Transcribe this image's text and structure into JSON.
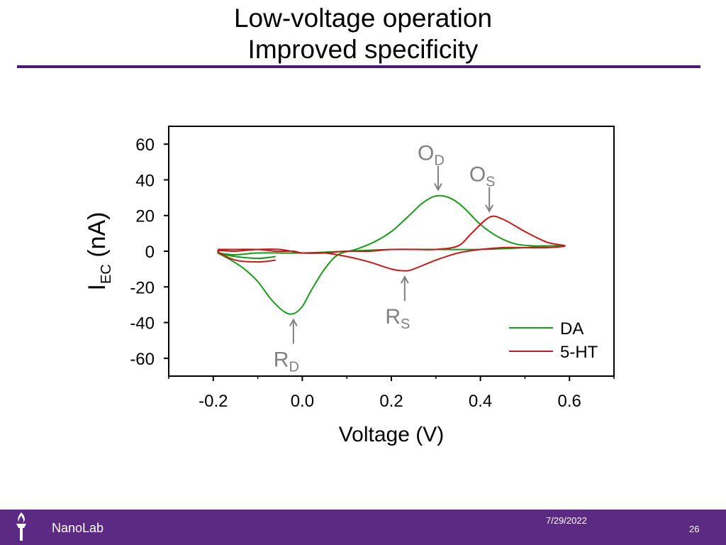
{
  "slide": {
    "title_line1": "Low-voltage operation",
    "title_line2": "Improved specificity",
    "footer_brand": "NanoLab",
    "footer_date": "7/29/2022",
    "page_number": "26",
    "colors": {
      "rule": "#4a1a6e",
      "footer": "#5c2a83"
    },
    "logo_icon": "torch-icon"
  },
  "chart_data": {
    "type": "line",
    "xlabel": "Voltage (V)",
    "ylabel": "I",
    "ylabel_sub": "EC",
    "ylabel_unit": " (nA)",
    "xlim": [
      -0.3,
      0.7
    ],
    "ylim": [
      -70,
      70
    ],
    "xticks": [
      -0.2,
      0.0,
      0.2,
      0.4,
      0.6
    ],
    "xtick_labels": [
      "-0.2",
      "0.0",
      "0.2",
      "0.4",
      "0.6"
    ],
    "yticks": [
      60,
      40,
      20,
      0,
      -20,
      -40,
      -60
    ],
    "ytick_labels": [
      "60",
      "40",
      "20",
      "0",
      "-20",
      "-40",
      "-60"
    ],
    "grid": false,
    "legend_position": "bottom-right",
    "series": [
      {
        "name": "DA",
        "color": "#1a9a1a",
        "x": [
          -0.19,
          -0.16,
          -0.13,
          -0.1,
          -0.07,
          -0.04,
          -0.02,
          0.0,
          0.02,
          0.05,
          0.08,
          0.12,
          0.16,
          0.2,
          0.24,
          0.27,
          0.3,
          0.33,
          0.36,
          0.4,
          0.44,
          0.48,
          0.52,
          0.56,
          0.59,
          0.56,
          0.5,
          0.4,
          0.3,
          0.2,
          0.1,
          0.0,
          -0.1,
          -0.15,
          -0.19,
          -0.15,
          -0.1,
          -0.06
        ],
        "y": [
          -1,
          -5,
          -10,
          -17,
          -27,
          -34,
          -35,
          -31,
          -22,
          -10,
          -2,
          1,
          5,
          11,
          20,
          27,
          31,
          30,
          25,
          15,
          8,
          4,
          3,
          3,
          3,
          3,
          2,
          1,
          1,
          1,
          0,
          -1,
          -1,
          -2,
          -1,
          -3,
          -4,
          -3
        ]
      },
      {
        "name": "5-HT",
        "color": "#c41a1a",
        "x": [
          -0.19,
          -0.15,
          -0.1,
          -0.06,
          -0.02,
          0.0,
          0.05,
          0.1,
          0.15,
          0.2,
          0.25,
          0.3,
          0.35,
          0.38,
          0.42,
          0.45,
          0.5,
          0.55,
          0.59,
          0.55,
          0.5,
          0.45,
          0.4,
          0.35,
          0.3,
          0.25,
          0.23,
          0.2,
          0.15,
          0.1,
          0.05,
          0.0,
          -0.05,
          -0.1,
          -0.15,
          -0.19,
          -0.15,
          -0.1,
          -0.06
        ],
        "y": [
          1,
          1,
          1,
          0,
          0,
          -1,
          -1,
          0,
          0,
          1,
          1,
          1,
          3,
          10,
          19,
          18,
          11,
          5,
          3,
          2,
          2,
          2,
          1,
          -1,
          -5,
          -10,
          -11,
          -10,
          -6,
          -3,
          -1,
          -1,
          1,
          1,
          0,
          0,
          -5,
          -6,
          -5
        ]
      }
    ],
    "annotations": [
      {
        "id": "od",
        "main": "O",
        "sub": "D",
        "x": 0.305,
        "y": 32,
        "side": "above"
      },
      {
        "id": "os",
        "main": "O",
        "sub": "S",
        "x": 0.42,
        "y": 20,
        "side": "above"
      },
      {
        "id": "rs",
        "main": "R",
        "sub": "S",
        "x": 0.23,
        "y": -12,
        "side": "below"
      },
      {
        "id": "rd",
        "main": "R",
        "sub": "D",
        "x": -0.02,
        "y": -36,
        "side": "below"
      }
    ]
  }
}
